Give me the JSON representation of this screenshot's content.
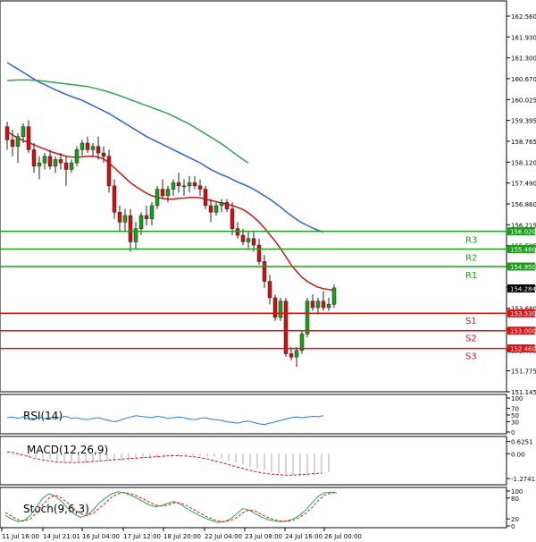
{
  "chart_data": [
    {
      "type": "candlestick",
      "title": "",
      "x_tick_labels": [
        "11 Jul 16:00",
        "14 Jul 21:01",
        "16 Jul 04:00",
        "17 Jul 12:00",
        "18 Jul 20:00",
        "22 Jul 04:00",
        "23 Jul 08:00",
        "24 Jul 16:00",
        "26 Jul 00:00"
      ],
      "y_tick_labels": [
        "162.560",
        "161.930",
        "161.300",
        "160.670",
        "160.025",
        "159.395",
        "158.765",
        "158.120",
        "157.490",
        "156.860",
        "156.215",
        "155.585",
        "154.950",
        "154.330",
        "153.680",
        "153.050",
        "152.405",
        "151.775",
        "151.145"
      ],
      "ylim": [
        151.145,
        162.56
      ],
      "current_price": {
        "value": 154.284,
        "label": "154.284"
      },
      "levels": [
        {
          "name": "R3",
          "value": 156.02,
          "label": "156.020",
          "color": "#1a9e1a"
        },
        {
          "name": "R2",
          "value": 155.48,
          "label": "155.480",
          "color": "#1a9e1a"
        },
        {
          "name": "R1",
          "value": 154.95,
          "label": "154.950",
          "color": "#1a9e1a"
        },
        {
          "name": "S1",
          "value": 153.53,
          "label": "153.530",
          "color": "#e01010"
        },
        {
          "name": "S2",
          "value": 153.0,
          "label": "153.000",
          "color": "#e01010"
        },
        {
          "name": "S3",
          "value": 152.46,
          "label": "152.460",
          "color": "#e01010"
        }
      ],
      "candles": [
        [
          159.2,
          159.35,
          158.5,
          158.8
        ],
        [
          158.8,
          159.1,
          158.3,
          158.6
        ],
        [
          158.6,
          159.0,
          158.1,
          158.9
        ],
        [
          158.9,
          159.3,
          158.7,
          159.2
        ],
        [
          159.2,
          159.4,
          158.4,
          158.5
        ],
        [
          158.5,
          158.7,
          157.8,
          158.0
        ],
        [
          158.0,
          158.3,
          157.6,
          158.1
        ],
        [
          158.1,
          158.4,
          157.9,
          158.3
        ],
        [
          158.3,
          158.5,
          157.9,
          158.0
        ],
        [
          158.0,
          158.3,
          157.8,
          158.2
        ],
        [
          158.2,
          158.4,
          157.9,
          158.1
        ],
        [
          158.1,
          158.3,
          157.4,
          157.9
        ],
        [
          157.9,
          158.2,
          157.8,
          158.1
        ],
        [
          158.1,
          158.6,
          158.0,
          158.5
        ],
        [
          158.5,
          158.8,
          158.3,
          158.7
        ],
        [
          158.7,
          158.9,
          158.4,
          158.5
        ],
        [
          158.5,
          158.7,
          158.3,
          158.6
        ],
        [
          158.6,
          158.9,
          158.2,
          158.4
        ],
        [
          158.4,
          158.6,
          158.1,
          158.3
        ],
        [
          158.3,
          158.5,
          157.2,
          157.4
        ],
        [
          157.4,
          157.6,
          156.4,
          156.6
        ],
        [
          156.6,
          156.8,
          156.0,
          156.3
        ],
        [
          156.3,
          156.7,
          156.0,
          156.5
        ],
        [
          156.5,
          156.7,
          155.4,
          155.7
        ],
        [
          155.7,
          156.3,
          155.5,
          156.1
        ],
        [
          156.1,
          156.6,
          155.9,
          156.5
        ],
        [
          156.5,
          156.8,
          156.2,
          156.4
        ],
        [
          156.4,
          156.9,
          156.2,
          156.8
        ],
        [
          156.8,
          157.4,
          156.7,
          157.3
        ],
        [
          157.3,
          157.6,
          157.0,
          157.1
        ],
        [
          157.1,
          157.4,
          156.9,
          157.3
        ],
        [
          157.3,
          157.6,
          157.1,
          157.5
        ],
        [
          157.5,
          157.8,
          157.2,
          157.4
        ],
        [
          157.4,
          157.6,
          157.1,
          157.4
        ],
        [
          157.4,
          157.7,
          157.2,
          157.5
        ],
        [
          157.5,
          157.7,
          157.3,
          157.4
        ],
        [
          157.4,
          157.6,
          157.1,
          157.3
        ],
        [
          157.3,
          157.4,
          156.7,
          156.8
        ],
        [
          156.8,
          157.0,
          156.3,
          156.6
        ],
        [
          156.6,
          156.9,
          156.5,
          156.8
        ],
        [
          156.8,
          157.0,
          156.6,
          156.9
        ],
        [
          156.9,
          157.0,
          156.6,
          156.7
        ],
        [
          156.7,
          156.9,
          155.9,
          156.1
        ],
        [
          156.1,
          156.3,
          155.8,
          155.9
        ],
        [
          155.9,
          156.1,
          155.6,
          155.7
        ],
        [
          155.7,
          156.0,
          155.5,
          155.8
        ],
        [
          155.8,
          156.0,
          155.4,
          155.6
        ],
        [
          155.6,
          155.8,
          155.0,
          155.1
        ],
        [
          155.1,
          155.3,
          154.3,
          154.5
        ],
        [
          154.5,
          154.7,
          153.8,
          154.0
        ],
        [
          154.0,
          154.1,
          153.3,
          153.4
        ],
        [
          153.4,
          154.0,
          153.3,
          153.9
        ],
        [
          153.9,
          154.0,
          152.2,
          152.3
        ],
        [
          152.3,
          152.5,
          152.1,
          152.2
        ],
        [
          152.2,
          152.5,
          151.9,
          152.4
        ],
        [
          152.4,
          153.0,
          152.3,
          152.9
        ],
        [
          152.9,
          154.0,
          152.8,
          153.9
        ],
        [
          153.9,
          154.1,
          153.6,
          153.7
        ],
        [
          153.7,
          154.0,
          153.5,
          153.9
        ],
        [
          153.9,
          154.2,
          153.6,
          153.7
        ],
        [
          153.7,
          154.0,
          153.6,
          153.8
        ],
        [
          153.8,
          154.4,
          153.7,
          154.3
        ]
      ],
      "ma_lines": [
        {
          "color": "#e01010",
          "values": [
            159.05,
            158.95,
            158.85,
            158.78,
            158.72,
            158.65,
            158.58,
            158.52,
            158.45,
            158.4,
            158.35,
            158.3,
            158.28,
            158.27,
            158.28,
            158.3,
            158.3,
            158.28,
            158.22,
            158.1,
            157.95,
            157.8,
            157.65,
            157.5,
            157.38,
            157.28,
            157.18,
            157.1,
            157.05,
            157.02,
            157.0,
            157.0,
            157.02,
            157.03,
            157.05,
            157.05,
            157.04,
            157.0,
            156.96,
            156.92,
            156.88,
            156.84,
            156.8,
            156.75,
            156.68,
            156.58,
            156.45,
            156.3,
            156.12,
            155.92,
            155.72,
            155.5,
            155.25,
            155.0,
            154.8,
            154.62,
            154.5,
            154.4,
            154.32,
            154.28,
            154.25,
            154.23
          ]
        },
        {
          "color": "#3060e0",
          "values": [
            161.15,
            161.05,
            160.95,
            160.85,
            160.75,
            160.65,
            160.55,
            160.48,
            160.4,
            160.32,
            160.25,
            160.18,
            160.12,
            160.06,
            160.0,
            159.92,
            159.84,
            159.76,
            159.68,
            159.6,
            159.5,
            159.4,
            159.3,
            159.2,
            159.1,
            159.0,
            158.9,
            158.82,
            158.74,
            158.66,
            158.58,
            158.5,
            158.42,
            158.34,
            158.26,
            158.18,
            158.1,
            158.0,
            157.9,
            157.82,
            157.74,
            157.68,
            157.6,
            157.52,
            157.45,
            157.38,
            157.3,
            157.2,
            157.1,
            157.0,
            156.88,
            156.76,
            156.62,
            156.5,
            156.38,
            156.28,
            156.2,
            156.12,
            156.05,
            156.0
          ]
        },
        {
          "color": "#2aa84a",
          "values": [
            160.6,
            160.61,
            160.62,
            160.62,
            160.62,
            160.61,
            160.6,
            160.58,
            160.56,
            160.54,
            160.52,
            160.5,
            160.48,
            160.46,
            160.44,
            160.42,
            160.38,
            160.34,
            160.3,
            160.25,
            160.2,
            160.14,
            160.08,
            160.02,
            159.96,
            159.9,
            159.84,
            159.78,
            159.72,
            159.66,
            159.6,
            159.52,
            159.44,
            159.36,
            159.28,
            159.18,
            159.08,
            158.98,
            158.88,
            158.78,
            158.68,
            158.56,
            158.44,
            158.32,
            158.2,
            158.1
          ]
        }
      ]
    },
    {
      "type": "line",
      "title": "RSI(14)",
      "ylim": [
        0,
        100
      ],
      "y_tick_labels": [
        "100",
        "70",
        "50",
        "30",
        "0"
      ],
      "series": [
        {
          "color": "#1e7fd8",
          "values": [
            42,
            44,
            40,
            45,
            38,
            36,
            44,
            40,
            42,
            38,
            44,
            46,
            40,
            42,
            38,
            36,
            40,
            42,
            38,
            34,
            30,
            34,
            40,
            44,
            48,
            46,
            44,
            42,
            46,
            44,
            40,
            42,
            44,
            42,
            38,
            36,
            40,
            42,
            38,
            36,
            34,
            30,
            28,
            26,
            30,
            32,
            28,
            24,
            22,
            26,
            30,
            34,
            38,
            42,
            44,
            42,
            44,
            46,
            45,
            48
          ]
        }
      ]
    },
    {
      "type": "bar",
      "title": "MACD(12,26,9)",
      "ylim": [
        -1.5,
        0.7
      ],
      "y_tick_labels": [
        "0.6251",
        "0.00",
        "-1.2741"
      ],
      "series": [
        {
          "name": "histogram",
          "color": "#aaaaaa",
          "values": [
            0.05,
            -0.05,
            -0.1,
            -0.15,
            -0.2,
            -0.25,
            -0.3,
            -0.35,
            -0.4,
            -0.42,
            -0.44,
            -0.45,
            -0.44,
            -0.42,
            -0.4,
            -0.38,
            -0.35,
            -0.32,
            -0.3,
            -0.28,
            -0.25,
            -0.22,
            -0.2,
            -0.18,
            -0.15,
            -0.12,
            -0.1,
            -0.12,
            -0.15,
            -0.18,
            -0.25,
            -0.35,
            -0.45,
            -0.55,
            -0.65,
            -0.75,
            -0.85,
            -0.95,
            -1.0,
            -1.05,
            -1.1,
            -1.12,
            -1.15,
            -1.12,
            -1.05,
            -0.95
          ]
        },
        {
          "name": "signal",
          "color": "#e01010",
          "values": [
            0.1,
            0.05,
            -0.05,
            -0.15,
            -0.25,
            -0.32,
            -0.38,
            -0.42,
            -0.45,
            -0.46,
            -0.45,
            -0.43,
            -0.4,
            -0.37,
            -0.34,
            -0.31,
            -0.28,
            -0.25,
            -0.23,
            -0.2,
            -0.18,
            -0.15,
            -0.12,
            -0.1,
            -0.1,
            -0.12,
            -0.15,
            -0.2,
            -0.27,
            -0.36,
            -0.46,
            -0.56,
            -0.66,
            -0.76,
            -0.86,
            -0.94,
            -1.0,
            -1.05,
            -1.08,
            -1.1,
            -1.1,
            -1.08,
            -1.05,
            -1.02,
            -1.0
          ]
        }
      ]
    },
    {
      "type": "line",
      "title": "Stoch(9,6,3)",
      "ylim": [
        0,
        100
      ],
      "y_tick_labels": [
        "100",
        "80",
        "20",
        "0"
      ],
      "series": [
        {
          "name": "main",
          "color": "#2aa84a",
          "values": [
            30,
            20,
            12,
            15,
            30,
            55,
            80,
            92,
            85,
            70,
            50,
            35,
            25,
            30,
            45,
            65,
            80,
            92,
            98,
            95,
            88,
            80,
            70,
            60,
            55,
            58,
            65,
            70,
            62,
            50,
            40,
            30,
            22,
            15,
            10,
            12,
            20,
            35,
            50,
            45,
            35,
            25,
            18,
            14,
            12,
            14,
            20,
            30,
            45,
            65,
            85,
            95,
            97,
            95
          ]
        },
        {
          "name": "signal",
          "color": "#e01010",
          "values": [
            38,
            28,
            18,
            14,
            20,
            38,
            62,
            80,
            88,
            80,
            65,
            48,
            35,
            30,
            36,
            50,
            66,
            82,
            92,
            96,
            92,
            86,
            78,
            68,
            60,
            57,
            60,
            66,
            66,
            58,
            48,
            38,
            28,
            20,
            14,
            12,
            15,
            24,
            38,
            46,
            42,
            32,
            24,
            18,
            14,
            13,
            16,
            24,
            36,
            52,
            72,
            88,
            94,
            96
          ]
        }
      ]
    }
  ]
}
